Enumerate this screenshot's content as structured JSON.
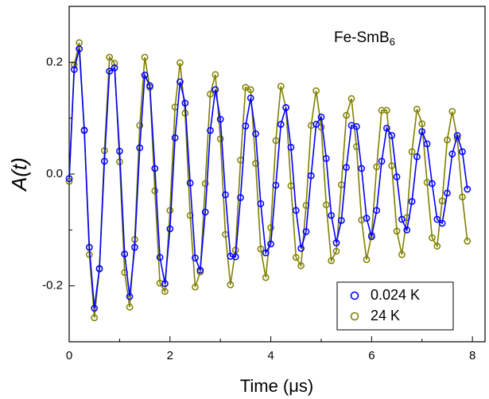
{
  "chart_data": {
    "type": "scatter",
    "annotation": {
      "text": "Fe-SmB",
      "subscript": "6"
    },
    "x_label": "Time (μs)",
    "y_label": "A(t)",
    "xlim": [
      0,
      8.25
    ],
    "ylim": [
      -0.3,
      0.3
    ],
    "xticks": [
      0,
      2,
      4,
      6,
      8
    ],
    "yticks": [
      -0.2,
      {
        "value": 0,
        "label": "0.0"
      },
      0.2
    ],
    "xminor": [
      1,
      3,
      5,
      7
    ],
    "yminor": [
      -0.1,
      0.1
    ],
    "legend": "lower right",
    "x": [
      0.0,
      0.1,
      0.2,
      0.3,
      0.4,
      0.5,
      0.6,
      0.7,
      0.8,
      0.9,
      1.0,
      1.1,
      1.2,
      1.3,
      1.4,
      1.5,
      1.6,
      1.7,
      1.8,
      1.9,
      2.0,
      2.1,
      2.2,
      2.3,
      2.4,
      2.5,
      2.6,
      2.7,
      2.8,
      2.9,
      3.0,
      3.1,
      3.2,
      3.3,
      3.4,
      3.5,
      3.6,
      3.7,
      3.8,
      3.9,
      4.0,
      4.1,
      4.2,
      4.3,
      4.4,
      4.5,
      4.6,
      4.7,
      4.8,
      4.9,
      5.0,
      5.1,
      5.2,
      5.3,
      5.4,
      5.5,
      5.6,
      5.7,
      5.8,
      5.9,
      6.0,
      6.1,
      6.2,
      6.3,
      6.4,
      6.5,
      6.6,
      6.7,
      6.8,
      6.9,
      7.0,
      7.1,
      7.2,
      7.3,
      7.4,
      7.5,
      7.6,
      7.7,
      7.8,
      7.9
    ],
    "series": [
      {
        "name": "24 K",
        "color": "#808000",
        "values": [
          -0.013,
          0.195,
          0.235,
          0.079,
          -0.144,
          -0.257,
          -0.17,
          0.042,
          0.209,
          0.198,
          0.022,
          -0.176,
          -0.238,
          -0.117,
          0.087,
          0.209,
          0.155,
          -0.03,
          -0.195,
          -0.21,
          -0.065,
          0.12,
          0.199,
          0.109,
          -0.074,
          -0.202,
          -0.175,
          -0.017,
          0.143,
          0.178,
          0.063,
          -0.108,
          -0.198,
          -0.136,
          0.025,
          0.155,
          0.151,
          0.019,
          -0.134,
          -0.185,
          -0.096,
          0.06,
          0.157,
          0.119,
          -0.021,
          -0.149,
          -0.164,
          -0.056,
          0.087,
          0.149,
          0.084,
          -0.055,
          -0.155,
          -0.138,
          -0.019,
          0.105,
          0.135,
          0.049,
          -0.082,
          -0.153,
          -0.109,
          0.013,
          0.114,
          0.114,
          0.015,
          -0.102,
          -0.144,
          -0.078,
          0.04,
          0.116,
          0.09,
          -0.015,
          -0.114,
          -0.129,
          -0.048,
          0.061,
          0.112,
          0.064,
          -0.041,
          -0.12
        ]
      },
      {
        "name": "0.024 K",
        "color": "#0000ff",
        "values": [
          -0.008,
          0.187,
          0.224,
          0.078,
          -0.131,
          -0.24,
          -0.169,
          0.023,
          0.184,
          0.19,
          0.041,
          -0.143,
          -0.219,
          -0.131,
          0.047,
          0.177,
          0.158,
          0.01,
          -0.149,
          -0.196,
          -0.098,
          0.065,
          0.165,
          0.127,
          -0.016,
          -0.15,
          -0.172,
          -0.068,
          0.078,
          0.151,
          0.098,
          -0.037,
          -0.147,
          -0.148,
          -0.042,
          0.086,
          0.136,
          0.072,
          -0.053,
          -0.141,
          -0.125,
          -0.02,
          0.089,
          0.119,
          0.048,
          -0.065,
          -0.133,
          -0.103,
          -0.003,
          0.089,
          0.102,
          0.028,
          -0.074,
          -0.123,
          -0.083,
          0.012,
          0.087,
          0.085,
          0.01,
          -0.079,
          -0.112,
          -0.065,
          0.023,
          0.082,
          0.069,
          -0.005,
          -0.081,
          -0.1,
          -0.049,
          0.031,
          0.076,
          0.054,
          -0.017,
          -0.081,
          -0.088,
          -0.034,
          0.036,
          0.069,
          0.04,
          -0.027
        ]
      }
    ]
  }
}
